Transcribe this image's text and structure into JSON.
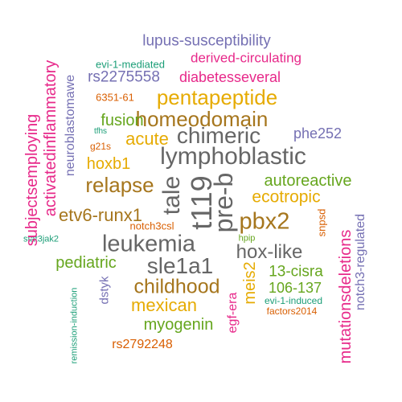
{
  "palette": {
    "teal": "#1b9e77",
    "orange": "#d95f02",
    "purple": "#7570b3",
    "magenta": "#e7298a",
    "green": "#66a61e",
    "gold": "#e6ab02",
    "brown": "#a6761d",
    "gray": "#666666"
  },
  "words": [
    {
      "text": "lupus-susceptibility",
      "color": "#7570b3"
    },
    {
      "text": "evi-1-mediated",
      "color": "#1b9e77"
    },
    {
      "text": "derived-circulating",
      "color": "#e7298a"
    },
    {
      "text": "rs2275558",
      "color": "#7570b3"
    },
    {
      "text": "diabetesseveral",
      "color": "#e7298a"
    },
    {
      "text": "6351-61",
      "color": "#d95f02"
    },
    {
      "text": "pentapeptide",
      "color": "#e6ab02"
    },
    {
      "text": "homeodomain",
      "color": "#a6761d"
    },
    {
      "text": "fusion",
      "color": "#66a61e"
    },
    {
      "text": "tfhs",
      "color": "#1b9e77"
    },
    {
      "text": "chimeric",
      "color": "#666666"
    },
    {
      "text": "phe252",
      "color": "#7570b3"
    },
    {
      "text": "g21s",
      "color": "#d95f02"
    },
    {
      "text": "acute",
      "color": "#e6ab02"
    },
    {
      "text": "lymphoblastic",
      "color": "#666666"
    },
    {
      "text": "hoxb1",
      "color": "#e6ab02"
    },
    {
      "text": "relapse",
      "color": "#a6761d"
    },
    {
      "text": "autoreactive",
      "color": "#66a61e"
    },
    {
      "text": "ecotropic",
      "color": "#e6ab02"
    },
    {
      "text": "etv6-runx1",
      "color": "#a6761d"
    },
    {
      "text": "pbx2",
      "color": "#a6761d"
    },
    {
      "text": "notch3csl",
      "color": "#d95f02"
    },
    {
      "text": "leukemia",
      "color": "#666666"
    },
    {
      "text": "hpip",
      "color": "#66a61e"
    },
    {
      "text": "hox-like",
      "color": "#666666"
    },
    {
      "text": "stat3jak2",
      "color": "#1b9e77"
    },
    {
      "text": "pediatric",
      "color": "#66a61e"
    },
    {
      "text": "sle1a1",
      "color": "#666666"
    },
    {
      "text": "13-cisra",
      "color": "#66a61e"
    },
    {
      "text": "106-137",
      "color": "#66a61e"
    },
    {
      "text": "childhood",
      "color": "#a6761d"
    },
    {
      "text": "evi-1-induced",
      "color": "#1b9e77"
    },
    {
      "text": "factors2014",
      "color": "#d95f02"
    },
    {
      "text": "mexican",
      "color": "#e6ab02"
    },
    {
      "text": "myogenin",
      "color": "#66a61e"
    },
    {
      "text": "rs2792248",
      "color": "#d95f02"
    },
    {
      "text": "activatedinflammatory",
      "color": "#e7298a"
    },
    {
      "text": "subjectsemploying",
      "color": "#e7298a"
    },
    {
      "text": "neuroblastomawe",
      "color": "#7570b3"
    },
    {
      "text": "tale",
      "color": "#666666"
    },
    {
      "text": "t119",
      "color": "#666666"
    },
    {
      "text": "pre-b",
      "color": "#666666"
    },
    {
      "text": "snpsd",
      "color": "#d95f02"
    },
    {
      "text": "meis2",
      "color": "#e6ab02"
    },
    {
      "text": "egf-era",
      "color": "#e7298a"
    },
    {
      "text": "dstyk",
      "color": "#7570b3"
    },
    {
      "text": "remission-induction",
      "color": "#1b9e77"
    },
    {
      "text": "mutationsdeletions",
      "color": "#e7298a"
    },
    {
      "text": "notch3-regulated",
      "color": "#7570b3"
    }
  ]
}
